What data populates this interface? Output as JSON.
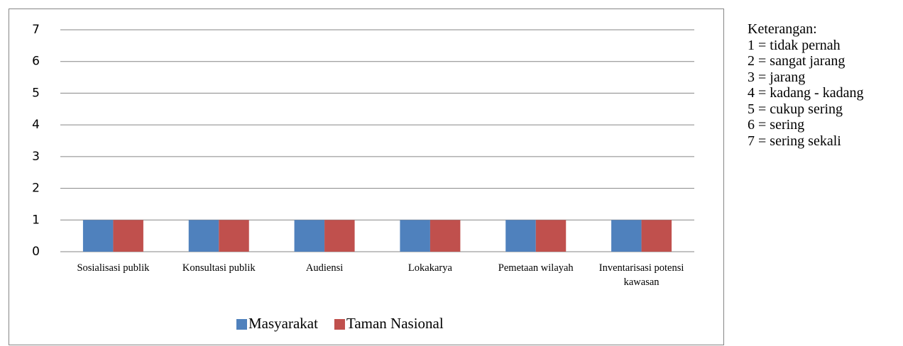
{
  "chart_data": {
    "type": "bar",
    "categories": [
      "Sosialisasi publik",
      "Konsultasi publik",
      "Audiensi",
      "Lokakarya",
      "Pemetaan wilayah",
      "Inventarisasi potensi kawasan"
    ],
    "series": [
      {
        "name": "Masyarakat",
        "color": "#4f81bd",
        "values": [
          1,
          1,
          1,
          1,
          1,
          1
        ]
      },
      {
        "name": "Taman Nasional",
        "color": "#c0504d",
        "values": [
          1,
          1,
          1,
          1,
          1,
          1
        ]
      }
    ],
    "ylim": [
      0,
      7
    ],
    "yticks": [
      0,
      1,
      2,
      3,
      4,
      5,
      6,
      7
    ],
    "grid": true,
    "legend": "bottom"
  },
  "annotations": {
    "title": "Keterangan:",
    "items": [
      "1 = tidak pernah",
      "2 = sangat jarang",
      "3 = jarang",
      "4 = kadang - kadang",
      "5 = cukup sering",
      "6 = sering",
      "7 = sering sekali"
    ]
  }
}
